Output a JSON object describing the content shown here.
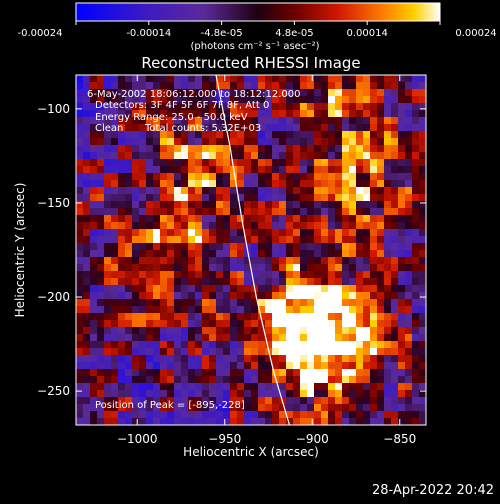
{
  "colorbar": {
    "ticks": [
      "-0.00024",
      "-0.00014",
      "-4.8e-05",
      "4.8e-05",
      "0.00014",
      "0.00024"
    ],
    "unit_label": "(photons cm⁻² s⁻¹ asec⁻²)",
    "range": [
      -0.00024,
      0.00024
    ]
  },
  "chart_data": {
    "type": "heatmap",
    "title": "Reconstructed RHESSI Image",
    "xlabel": "Heliocentric X (arcsec)",
    "ylabel": "Heliocentric Y (arcsec)",
    "xlim": [
      -1035,
      -835
    ],
    "ylim": [
      -268,
      -82
    ],
    "x_ticks": [
      -1000,
      -950,
      -900,
      -850
    ],
    "y_ticks": [
      -100,
      -150,
      -200,
      -250
    ],
    "limb_curve": [
      [
        -955,
        -82
      ],
      [
        -947,
        -120
      ],
      [
        -940,
        -160
      ],
      [
        -932,
        -200
      ],
      [
        -922,
        -240
      ],
      [
        -913,
        -268
      ]
    ],
    "bright_regions": [
      {
        "x": -968,
        "y": -130,
        "intensity": 0.00014
      },
      {
        "x": -980,
        "y": -180,
        "intensity": 0.00016
      },
      {
        "x": -898,
        "y": -210,
        "intensity": 0.0002
      },
      {
        "x": -895,
        "y": -228,
        "intensity": 0.00024
      },
      {
        "x": -870,
        "y": -150,
        "intensity": 0.00014
      },
      {
        "x": -880,
        "y": -100,
        "intensity": 0.00012
      }
    ],
    "info": {
      "time": "6-May-2002 18:06:12.000 to 18:12:12.000",
      "detectors": "Detectors: 3F 4F 5F 6F 7F 8F, Att 0",
      "energy": "Energy Range: 25.0 - 50.0 keV",
      "method": "Clean",
      "counts": "Total counts: 5.32E+03",
      "peak": "Position of Peak = [-895,-228]"
    }
  },
  "footer_date": "28-Apr-2022 20:42"
}
